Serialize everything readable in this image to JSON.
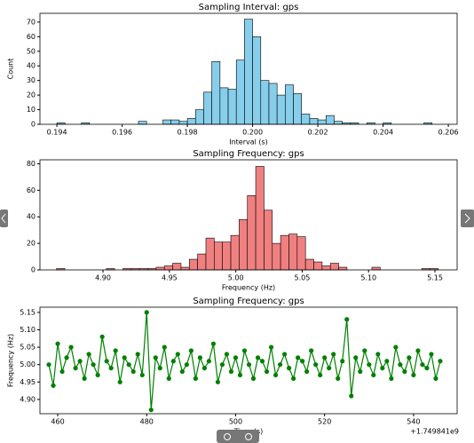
{
  "chart_data": [
    {
      "type": "histogram",
      "title": "Sampling Interval: gps",
      "x_label": "Interval (s)",
      "y_label": "Count",
      "color": "#87ceeb",
      "bins": [
        0.194,
        0.19425,
        0.1945,
        0.19475,
        0.195,
        0.19525,
        0.1955,
        0.19575,
        0.196,
        0.19625,
        0.1965,
        0.19675,
        0.197,
        0.19725,
        0.1975,
        0.19775,
        0.198,
        0.19825,
        0.1985,
        0.19875,
        0.199,
        0.19925,
        0.1995,
        0.19975,
        0.2,
        0.20025,
        0.2005,
        0.20075,
        0.201,
        0.20125,
        0.2015,
        0.20175,
        0.202,
        0.20225,
        0.2025,
        0.20275,
        0.203,
        0.20325,
        0.2035,
        0.20375,
        0.204,
        0.20425,
        0.2045,
        0.20475,
        0.205,
        0.20525,
        0.2055
      ],
      "values": [
        1,
        0,
        0,
        1,
        0,
        0,
        0,
        0,
        0,
        0,
        2,
        0,
        0,
        3,
        3,
        2,
        4,
        10,
        22,
        43,
        25,
        24,
        44,
        72,
        60,
        30,
        28,
        20,
        27,
        21,
        7,
        4,
        3,
        6,
        2,
        1,
        1,
        0,
        1,
        0,
        1,
        0,
        0,
        0,
        0,
        1
      ],
      "xlim": [
        0.19348,
        0.20627
      ],
      "xticks": [
        0.194,
        0.196,
        0.198,
        {
          "value": 0.2,
          "label": "0.200"
        },
        0.202,
        0.204,
        0.206
      ],
      "ylim": [
        0,
        76
      ],
      "yticks": [
        0,
        10,
        20,
        30,
        40,
        50,
        60,
        70
      ]
    },
    {
      "type": "histogram",
      "title": "Sampling Frequency: gps",
      "x_label": "Frequency (Hz)",
      "color": "#f08080",
      "bins": [
        4.865,
        4.87125,
        4.8775,
        4.88375,
        4.89,
        4.89625,
        4.9025,
        4.90875,
        4.915,
        4.92125,
        4.9275,
        4.93375,
        4.94,
        4.94625,
        4.9525,
        4.95875,
        4.965,
        4.97125,
        4.9775,
        4.98375,
        4.99,
        4.99625,
        5.0025,
        5.00875,
        5.015,
        5.02125,
        5.0275,
        5.03375,
        5.04,
        5.04625,
        5.0525,
        5.05875,
        5.065,
        5.07125,
        5.0775,
        5.08375,
        5.09,
        5.09625,
        5.1025,
        5.10875,
        5.115,
        5.12125,
        5.1275,
        5.13375,
        5.14,
        5.14625,
        5.1525
      ],
      "values": [
        1,
        0,
        0,
        0,
        0,
        0,
        1,
        0,
        1,
        1,
        1,
        1,
        2,
        3,
        5,
        2,
        8,
        12,
        24,
        21,
        21,
        26,
        38,
        56,
        78,
        45,
        20,
        26,
        27,
        25,
        8,
        6,
        3,
        5,
        2,
        0,
        0,
        0,
        2,
        0,
        0,
        0,
        0,
        0,
        1,
        1
      ],
      "xlim": [
        4.8525,
        5.1667
      ],
      "xticks": [
        {
          "value": 4.9,
          "label": "4.90"
        },
        4.95,
        {
          "value": 5.0,
          "label": "5.00"
        },
        5.05,
        {
          "value": 5.1,
          "label": "5.10"
        },
        5.15
      ],
      "ylim": [
        0,
        83
      ],
      "yticks": [
        0,
        20,
        40,
        60,
        80
      ]
    },
    {
      "type": "line",
      "title": "Sampling Frequency: gps",
      "x_label": "Time (s)",
      "y_label": "Frequency (Hz)",
      "x_offset_label": "+1.749841e9",
      "color": "#008000",
      "x": [
        458,
        459,
        460,
        461,
        462,
        463,
        464,
        465,
        466,
        467,
        468,
        469,
        470,
        471,
        472,
        473,
        474,
        475,
        476,
        477,
        478,
        479,
        480,
        481,
        482,
        483,
        484,
        485,
        486,
        487,
        488,
        489,
        490,
        491,
        492,
        493,
        494,
        495,
        496,
        497,
        498,
        499,
        500,
        501,
        502,
        503,
        504,
        505,
        506,
        507,
        508,
        509,
        510,
        511,
        512,
        513,
        514,
        515,
        516,
        517,
        518,
        519,
        520,
        521,
        522,
        523,
        524,
        525,
        526,
        527,
        528,
        529,
        530,
        531,
        532,
        533,
        534,
        535,
        536,
        537,
        538,
        539,
        540,
        541,
        542,
        543,
        544,
        545,
        546
      ],
      "values": [
        5.0,
        4.94,
        5.06,
        4.98,
        5.02,
        5.05,
        4.99,
        5.01,
        4.96,
        5.03,
        5.0,
        4.97,
        5.08,
        5.01,
        4.99,
        5.04,
        4.95,
        5.02,
        5.0,
        4.98,
        5.03,
        4.97,
        5.15,
        4.87,
        5.02,
        4.99,
        5.05,
        4.96,
        5.01,
        5.03,
        4.98,
        5.0,
        5.04,
        4.96,
        5.02,
        4.99,
        5.01,
        5.06,
        4.95,
        5.0,
        5.03,
        4.98,
        5.02,
        4.97,
        5.04,
        5.0,
        4.96,
        5.02,
        5.01,
        4.98,
        5.05,
        4.97,
        5.0,
        5.03,
        4.99,
        4.96,
        5.02,
        5.01,
        4.98,
        5.04,
        5.0,
        4.97,
        5.02,
        4.99,
        5.03,
        4.96,
        5.01,
        5.13,
        4.91,
        5.02,
        4.98,
        5.04,
        5.0,
        4.97,
        5.03,
        4.99,
        5.01,
        4.96,
        5.05,
        5.0,
        4.98,
        5.02,
        4.97,
        5.04,
        5.0,
        4.99,
        5.03,
        4.96,
        5.01
      ],
      "xlim": [
        456,
        549.8
      ],
      "xticks": [
        460,
        480,
        500,
        520,
        540
      ],
      "ylim": [
        4.859,
        5.165
      ],
      "yticks": [
        {
          "value": 4.9,
          "label": "4.90"
        },
        4.95,
        {
          "value": 5.0,
          "label": "5.00"
        },
        5.05,
        {
          "value": 5.1,
          "label": "5.10"
        },
        5.15
      ]
    }
  ]
}
